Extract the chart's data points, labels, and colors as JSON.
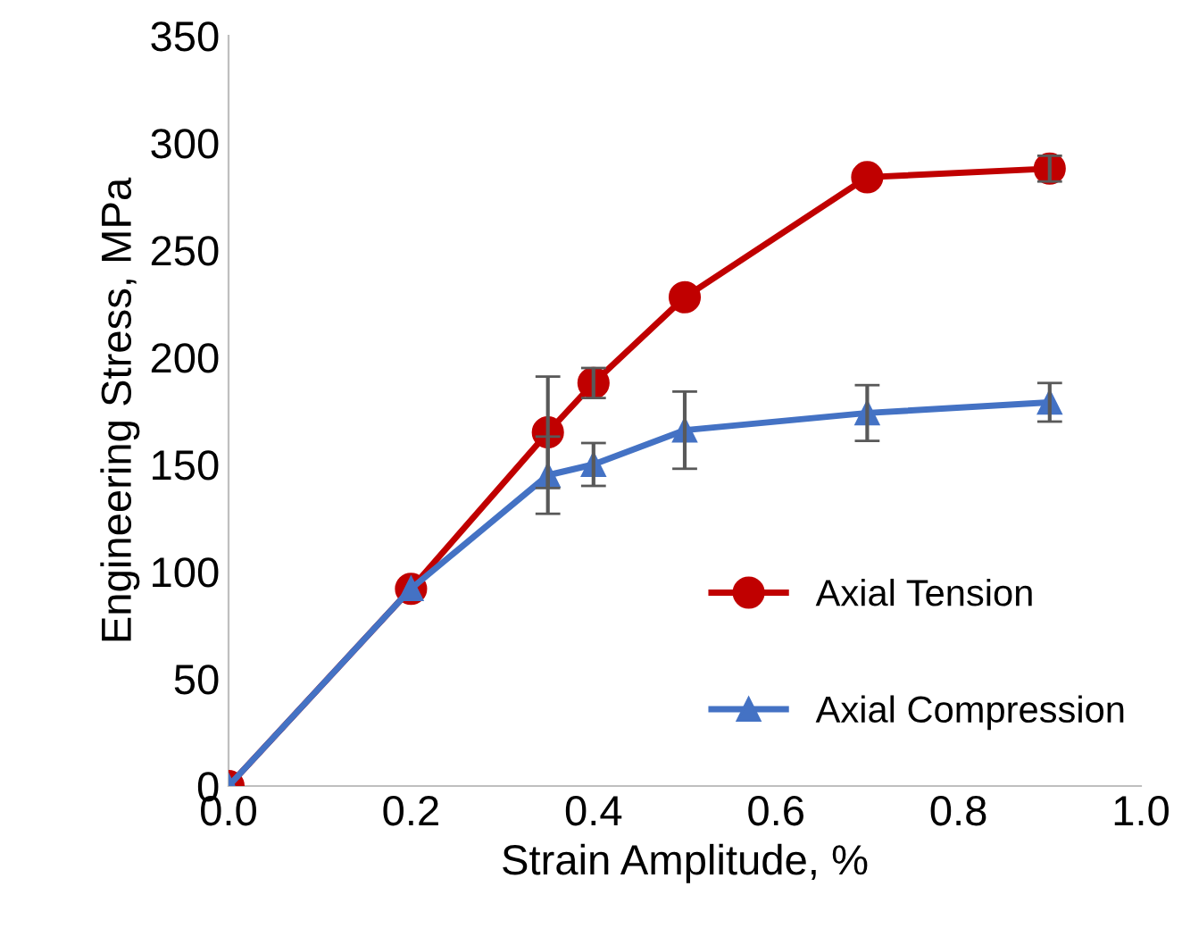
{
  "chart_data": {
    "type": "line",
    "xlabel": "Strain Amplitude, %",
    "ylabel": "Engineering Stress, MPa",
    "x": [
      0.0,
      0.2,
      0.35,
      0.4,
      0.5,
      0.7,
      0.9
    ],
    "series": [
      {
        "name": "Axial Tension",
        "color": "#c00000",
        "marker": "circle",
        "values": [
          0,
          92,
          165,
          188,
          228,
          284,
          288
        ],
        "errors": [
          null,
          null,
          26,
          7,
          null,
          null,
          6
        ]
      },
      {
        "name": "Axial Compression",
        "color": "#4472c4",
        "marker": "triangle",
        "values": [
          0,
          92,
          145,
          150,
          166,
          174,
          179
        ],
        "errors": [
          null,
          null,
          18,
          10,
          18,
          13,
          9
        ]
      }
    ],
    "xlim": [
      0.0,
      1.0
    ],
    "xticks": [
      {
        "value": 0,
        "label": "0.0"
      },
      0.2,
      0.4,
      0.6,
      0.8,
      {
        "value": 1,
        "label": "1.0"
      }
    ],
    "ylim": [
      0,
      350
    ],
    "yticks": [
      0,
      50,
      100,
      150,
      200,
      250,
      300,
      350
    ],
    "grid": false,
    "legend": "bottom right"
  }
}
